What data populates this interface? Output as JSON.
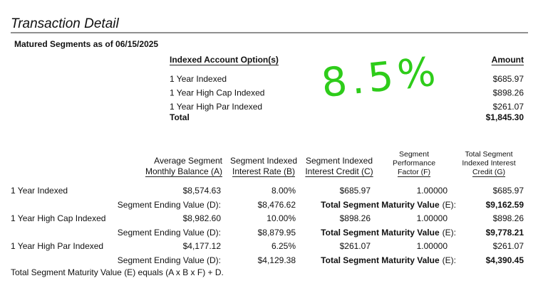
{
  "header": {
    "title": "Transaction Detail",
    "subtitle": "Matured Segments as of 06/15/2025"
  },
  "summary": {
    "headers": [
      "Indexed Account Option(s)",
      "Amount"
    ],
    "rows": [
      [
        "1 Year Indexed",
        "$685.97"
      ],
      [
        "1 Year High Cap Indexed",
        "$898.26"
      ],
      [
        "1 Year High Par Indexed",
        "$261.07"
      ]
    ],
    "total": [
      "Total",
      "$1,845.30"
    ]
  },
  "annotation": "8.5%",
  "detail": {
    "headers": [
      [
        "Average Segment",
        "Monthly Balance (A)"
      ],
      [
        "Segment Indexed",
        "Interest Rate (B)"
      ],
      [
        "Segment Indexed",
        "Interest Credit (C)"
      ],
      [
        "Segment",
        "Performance",
        "Factor (F)"
      ],
      [
        "Total Segment",
        "Indexed Interest",
        "Credit (G)"
      ]
    ],
    "segments": [
      {
        "name": "1 Year Indexed",
        "balance": "$8,574.63",
        "rate": "8.00%",
        "credit": "$685.97",
        "factor": "1.00000",
        "total_credit": "$685.97",
        "ending_label": "Segment Ending Value (D):",
        "ending_value": "$8,476.62",
        "maturity_label": "Total Segment Maturity Value",
        "maturity_suffix": "(E):",
        "maturity_value": "$9,162.59"
      },
      {
        "name": "1 Year High Cap Indexed",
        "balance": "$8,982.60",
        "rate": "10.00%",
        "credit": "$898.26",
        "factor": "1.00000",
        "total_credit": "$898.26",
        "ending_label": "Segment Ending Value (D):",
        "ending_value": "$8,879.95",
        "maturity_label": "Total Segment Maturity Value",
        "maturity_suffix": "(E):",
        "maturity_value": "$9,778.21"
      },
      {
        "name": "1 Year High Par Indexed",
        "balance": "$4,177.12",
        "rate": "6.25%",
        "credit": "$261.07",
        "factor": "1.00000",
        "total_credit": "$261.07",
        "ending_label": "Segment Ending Value (D):",
        "ending_value": "$4,129.38",
        "maturity_label": "Total Segment Maturity Value",
        "maturity_suffix": "(E):",
        "maturity_value": "$4,390.45"
      }
    ]
  },
  "footnote": "Total Segment Maturity Value (E) equals (A x B x F) + D."
}
